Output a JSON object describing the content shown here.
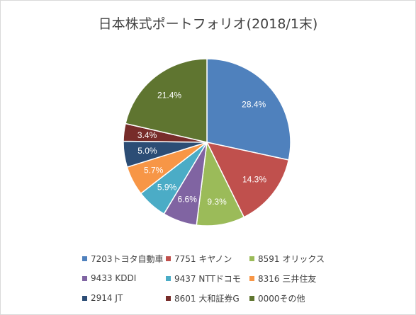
{
  "chart_data": {
    "type": "pie",
    "title": "日本株式ポートフォリオ(2018/1末)",
    "slices": [
      {
        "label": "7203トヨタ自動車",
        "value": 28.4,
        "display": "28.4%",
        "color": "#4f81bd"
      },
      {
        "label": "7751 キヤノン",
        "value": 14.3,
        "display": "14.3%",
        "color": "#c0504d"
      },
      {
        "label": "8591 オリックス",
        "value": 9.3,
        "display": "9.3%",
        "color": "#9bbb59"
      },
      {
        "label": "9433 KDDI",
        "value": 6.6,
        "display": "6.6%",
        "color": "#8064a2"
      },
      {
        "label": "9437 NTTドコモ",
        "value": 5.9,
        "display": "5.9%",
        "color": "#4bacc6"
      },
      {
        "label": "8316 三井住友",
        "value": 5.7,
        "display": "5.7%",
        "color": "#f79646"
      },
      {
        "label": "2914 JT",
        "value": 5.0,
        "display": "5.0%",
        "color": "#2c4d75"
      },
      {
        "label": "8601 大和証券G",
        "value": 3.4,
        "display": "3.4%",
        "color": "#772c2a"
      },
      {
        "label": "0000その他",
        "value": 21.4,
        "display": "21.4%",
        "color": "#5f7530"
      }
    ],
    "legend_position": "bottom"
  }
}
